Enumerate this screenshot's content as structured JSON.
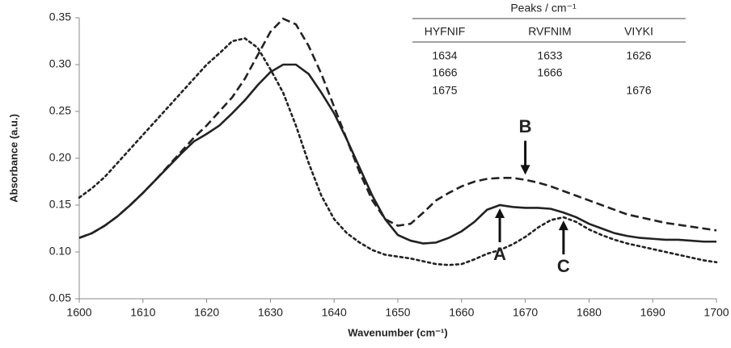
{
  "chart_data": {
    "type": "line",
    "x_label": "Wavenumber (cm⁻¹)",
    "y_label": "Absorbance (a.u.)",
    "x": [
      1600,
      1602,
      1604,
      1606,
      1608,
      1610,
      1612,
      1614,
      1616,
      1618,
      1620,
      1622,
      1624,
      1626,
      1628,
      1630,
      1632,
      1634,
      1636,
      1638,
      1640,
      1642,
      1644,
      1646,
      1648,
      1650,
      1652,
      1654,
      1656,
      1658,
      1660,
      1662,
      1664,
      1666,
      1668,
      1670,
      1672,
      1674,
      1676,
      1678,
      1680,
      1682,
      1684,
      1686,
      1688,
      1690,
      1692,
      1694,
      1696,
      1698,
      1700
    ],
    "series": [
      {
        "color": "#222222",
        "dash": "solid",
        "values": [
          0.115,
          0.12,
          0.128,
          0.138,
          0.15,
          0.163,
          0.177,
          0.191,
          0.205,
          0.218,
          0.226,
          0.235,
          0.248,
          0.262,
          0.278,
          0.292,
          0.3,
          0.3,
          0.29,
          0.27,
          0.248,
          0.22,
          0.19,
          0.16,
          0.135,
          0.118,
          0.112,
          0.109,
          0.11,
          0.115,
          0.122,
          0.132,
          0.145,
          0.15,
          0.148,
          0.147,
          0.147,
          0.146,
          0.142,
          0.137,
          0.13,
          0.125,
          0.12,
          0.117,
          0.115,
          0.114,
          0.113,
          0.113,
          0.112,
          0.111,
          0.111
        ]
      },
      {
        "color": "#222222",
        "dash": "dashed",
        "values": [
          0.115,
          0.12,
          0.128,
          0.138,
          0.15,
          0.163,
          0.177,
          0.192,
          0.207,
          0.222,
          0.235,
          0.25,
          0.265,
          0.285,
          0.31,
          0.335,
          0.349,
          0.343,
          0.32,
          0.29,
          0.255,
          0.22,
          0.185,
          0.155,
          0.135,
          0.128,
          0.13,
          0.142,
          0.155,
          0.163,
          0.17,
          0.175,
          0.178,
          0.179,
          0.179,
          0.177,
          0.174,
          0.17,
          0.165,
          0.16,
          0.155,
          0.15,
          0.145,
          0.14,
          0.137,
          0.134,
          0.131,
          0.129,
          0.127,
          0.125,
          0.123
        ]
      },
      {
        "color": "#222222",
        "dash": "dotted",
        "values": [
          0.158,
          0.168,
          0.18,
          0.195,
          0.21,
          0.225,
          0.24,
          0.255,
          0.27,
          0.285,
          0.3,
          0.312,
          0.325,
          0.328,
          0.318,
          0.295,
          0.27,
          0.235,
          0.195,
          0.16,
          0.135,
          0.12,
          0.11,
          0.102,
          0.097,
          0.095,
          0.093,
          0.09,
          0.087,
          0.086,
          0.087,
          0.092,
          0.098,
          0.102,
          0.108,
          0.116,
          0.126,
          0.134,
          0.137,
          0.132,
          0.124,
          0.118,
          0.113,
          0.109,
          0.106,
          0.103,
          0.1,
          0.097,
          0.094,
          0.091,
          0.089
        ]
      }
    ],
    "xlim": [
      1600,
      1700
    ],
    "xticks": [
      1600,
      1610,
      1620,
      1630,
      1640,
      1650,
      1660,
      1670,
      1680,
      1690,
      1700
    ],
    "ylim": [
      0.05,
      0.35
    ],
    "yticks": [
      0.05,
      {
        "value": 0.1,
        "label": "0.10"
      },
      0.15,
      {
        "value": 0.2,
        "label": "0.20"
      },
      0.25,
      {
        "value": 0.3,
        "label": "0.30"
      },
      0.35
    ],
    "grid": false,
    "annotations": [
      {
        "text": "A",
        "x": 1666,
        "y": 0.15
      },
      {
        "text": "B",
        "x": 1670,
        "y": 0.179
      },
      {
        "text": "C",
        "x": 1676,
        "y": 0.137
      }
    ],
    "table": {
      "title": "Peaks / cm⁻¹",
      "columns": [
        "HYFNIF",
        "RVFNIM",
        "VIYKI"
      ],
      "rows": [
        [
          1634,
          1633,
          1626
        ],
        [
          1666,
          1666,
          null
        ],
        [
          1675,
          null,
          1676
        ]
      ]
    }
  }
}
